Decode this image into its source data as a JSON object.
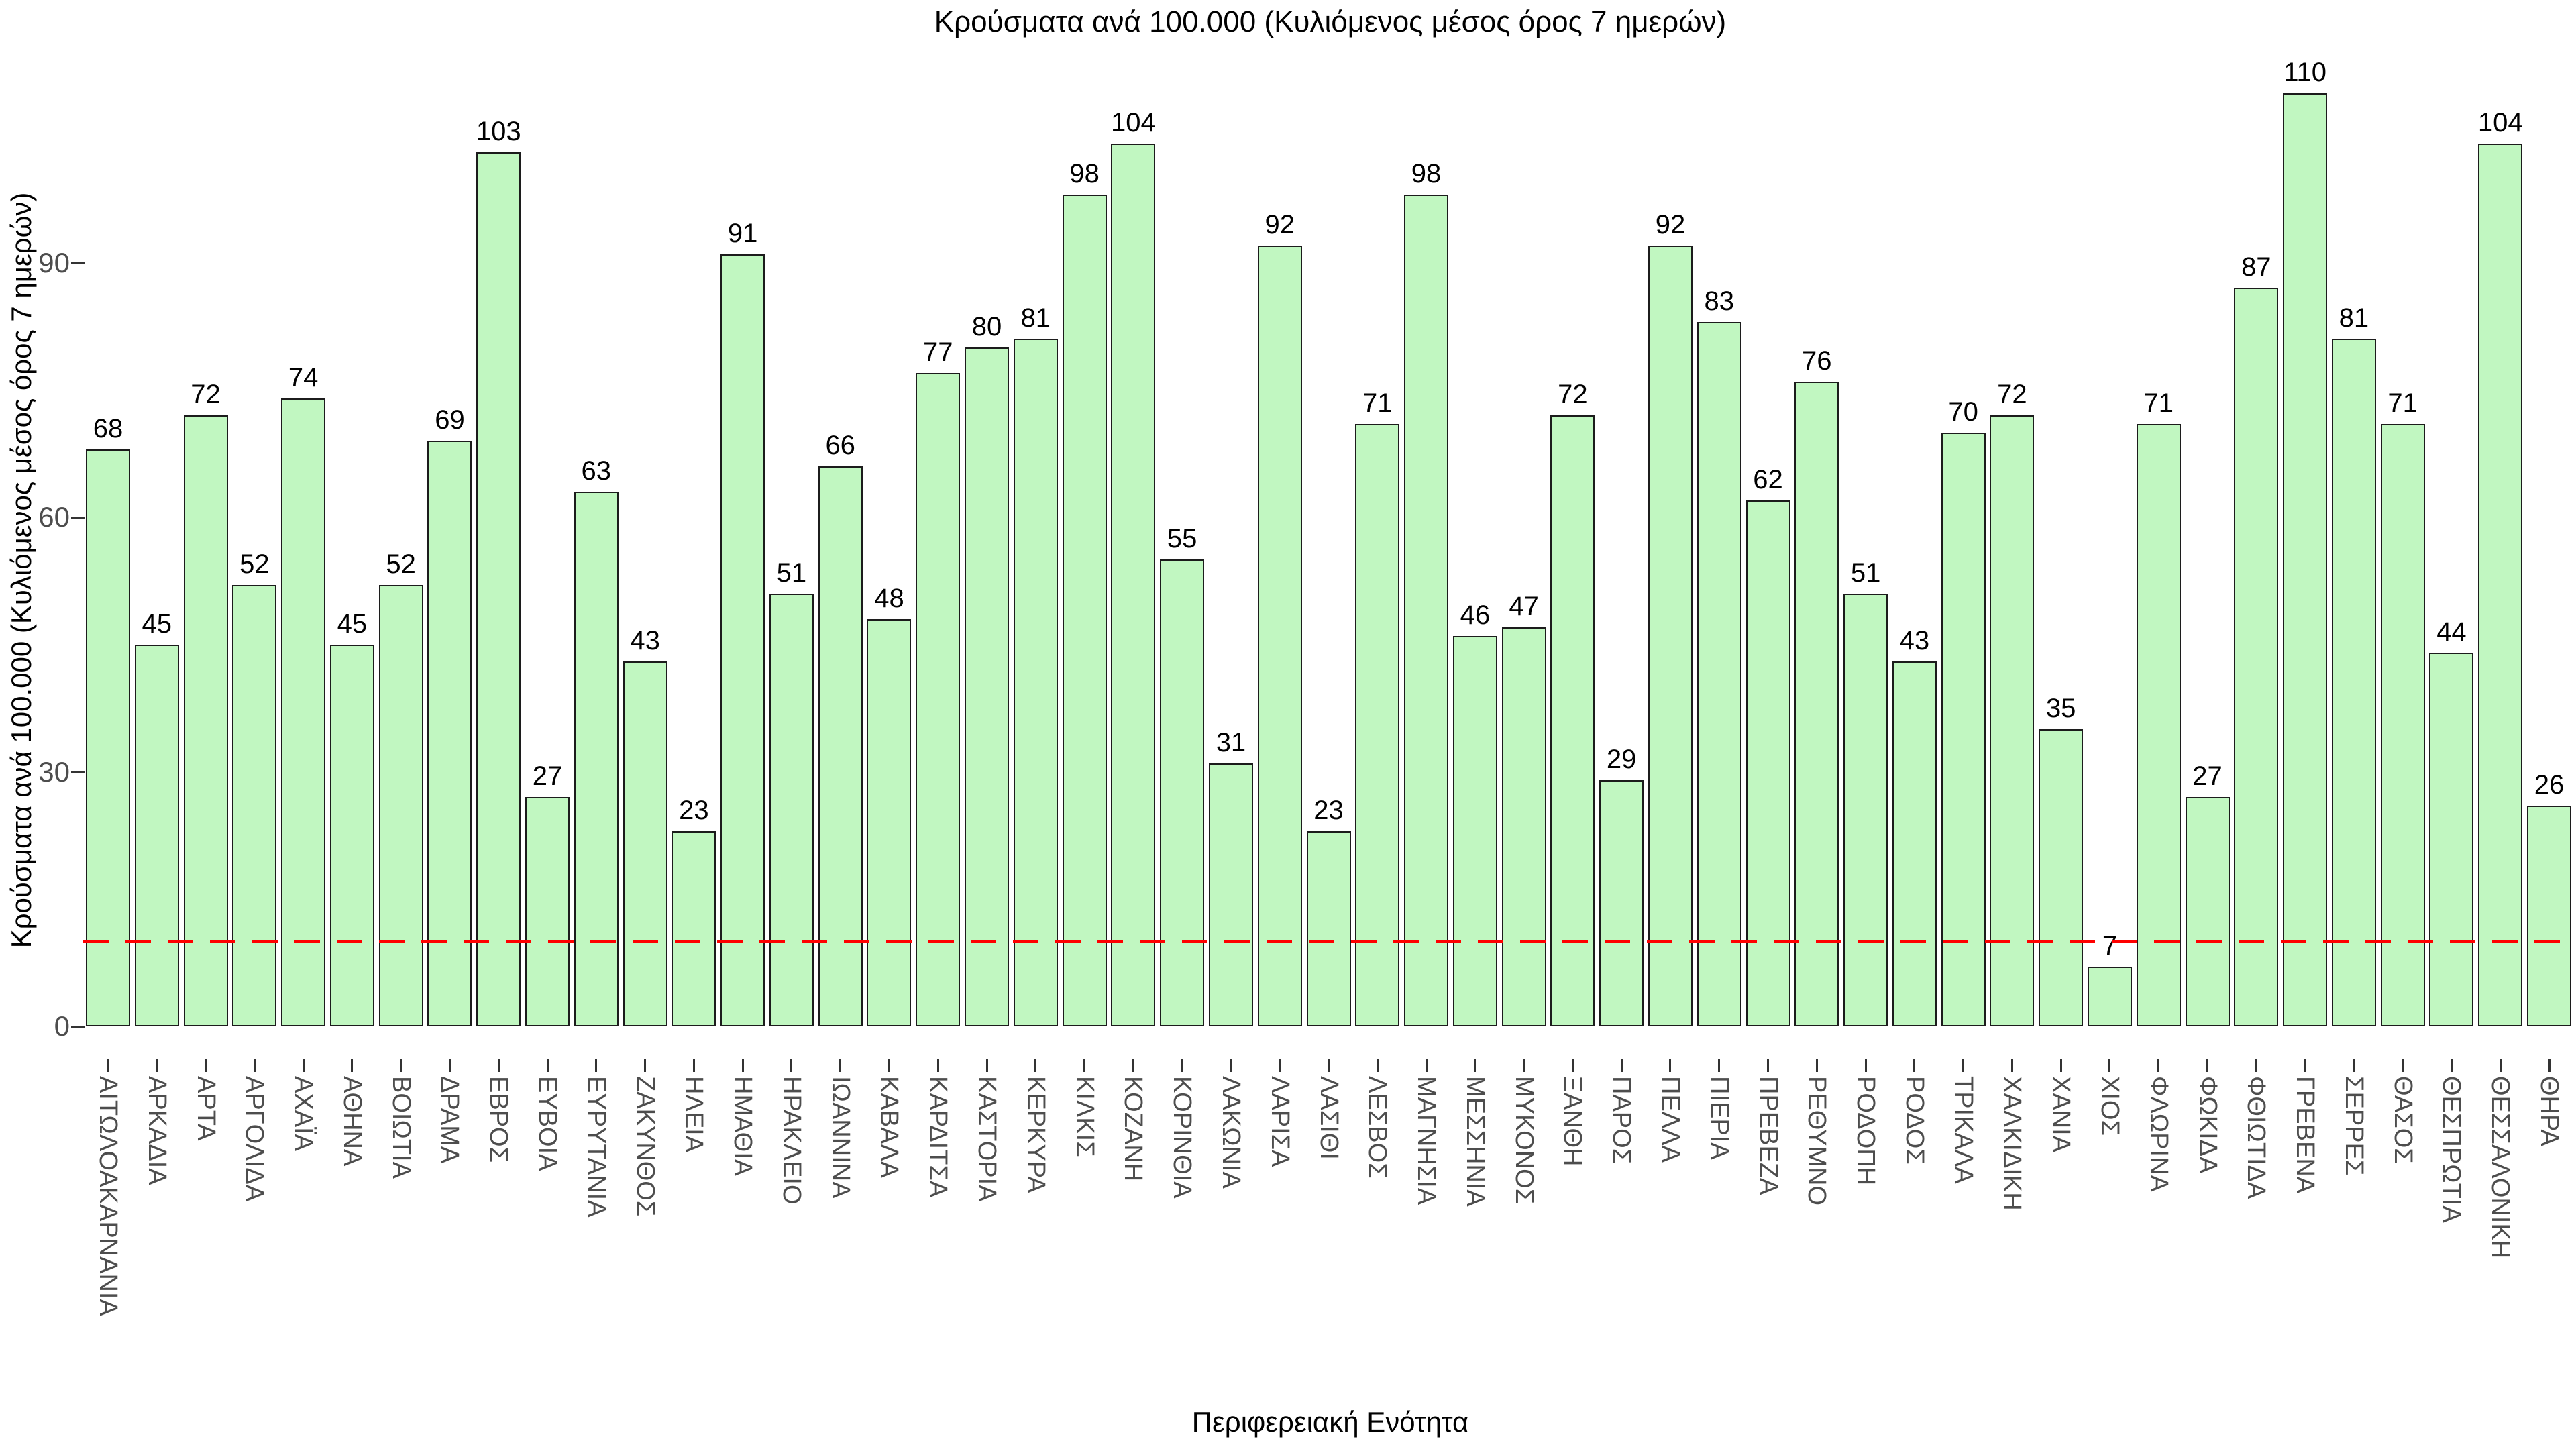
{
  "chart_data": {
    "type": "bar",
    "title": "Κρούσματα ανά 100.000 (Κυλιόμενος μέσος όρος 7 ημερών)",
    "ylabel": "Κρούσματα ανά 100.000 (Κυλιόμενος μέσος όρος 7 ημερών)",
    "xlabel": "Περιφερειακή Ενότητα",
    "categories": [
      "ΑΙΤΩΛΟΑΚΑΡΝΑΝΙΑ",
      "ΑΡΚΑΔΙΑ",
      "ΑΡΤΑ",
      "ΑΡΓΟΛΙΔΑ",
      "ΑΧΑΪΑ",
      "ΑΘΗΝΑ",
      "ΒΟΙΩΤΙΑ",
      "ΔΡΑΜΑ",
      "ΕΒΡΟΣ",
      "ΕΥΒΟΙΑ",
      "ΕΥΡΥΤΑΝΙΑ",
      "ΖΑΚΥΝΘΟΣ",
      "ΗΛΕΙΑ",
      "ΗΜΑΘΙΑ",
      "ΗΡΑΚΛΕΙΟ",
      "ΙΩΑΝΝΙΝΑ",
      "ΚΑΒΑΛΑ",
      "ΚΑΡΔΙΤΣΑ",
      "ΚΑΣΤΟΡΙΑ",
      "ΚΕΡΚΥΡΑ",
      "ΚΙΛΚΙΣ",
      "ΚΟΖΑΝΗ",
      "ΚΟΡΙΝΘΙΑ",
      "ΛΑΚΩΝΙΑ",
      "ΛΑΡΙΣΑ",
      "ΛΑΣΙΘΙ",
      "ΛΕΣΒΟΣ",
      "ΜΑΓΝΗΣΙΑ",
      "ΜΕΣΣΗΝΙΑ",
      "ΜΥΚΟΝΟΣ",
      "ΞΑΝΘΗ",
      "ΠΑΡΟΣ",
      "ΠΕΛΛΑ",
      "ΠΙΕΡΙΑ",
      "ΠΡΕΒΕΖΑ",
      "ΡΕΘΥΜΝΟ",
      "ΡΟΔΟΠΗ",
      "ΡΟΔΟΣ",
      "ΤΡΙΚΑΛΑ",
      "ΧΑΛΚΙΔΙΚΗ",
      "ΧΑΝΙΑ",
      "ΧΙΟΣ",
      "ΦΛΩΡΙΝΑ",
      "ΦΩΚΙΔΑ",
      "ΦΘΙΩΤΙΔΑ",
      "ΓΡΕΒΕΝΑ",
      "ΣΕΡΡΕΣ",
      "ΘΑΣΟΣ",
      "ΘΕΣΠΡΩΤΙΑ",
      "ΘΕΣΣΑΛΟΝΙΚΗ",
      "ΘΗΡΑ"
    ],
    "values": [
      68,
      45,
      72,
      52,
      74,
      45,
      52,
      69,
      103,
      27,
      63,
      43,
      23,
      91,
      51,
      66,
      48,
      77,
      80,
      81,
      98,
      104,
      55,
      31,
      92,
      23,
      71,
      98,
      46,
      47,
      72,
      29,
      92,
      83,
      62,
      76,
      51,
      43,
      70,
      72,
      35,
      7,
      71,
      27,
      87,
      110,
      81,
      71,
      44,
      104,
      26
    ],
    "yticks": [
      0,
      30,
      60,
      90
    ],
    "ylim": [
      0,
      115
    ],
    "grid": false,
    "legend_position": "none",
    "bar_fill_color": "#c1f7c1",
    "bar_border_color": "#1c1c1c",
    "value_label_color": "#000000",
    "axis_text_color": "#4d4d4d",
    "reference_line": {
      "value": 10,
      "color": "#ff0000",
      "style": "dashed"
    }
  }
}
